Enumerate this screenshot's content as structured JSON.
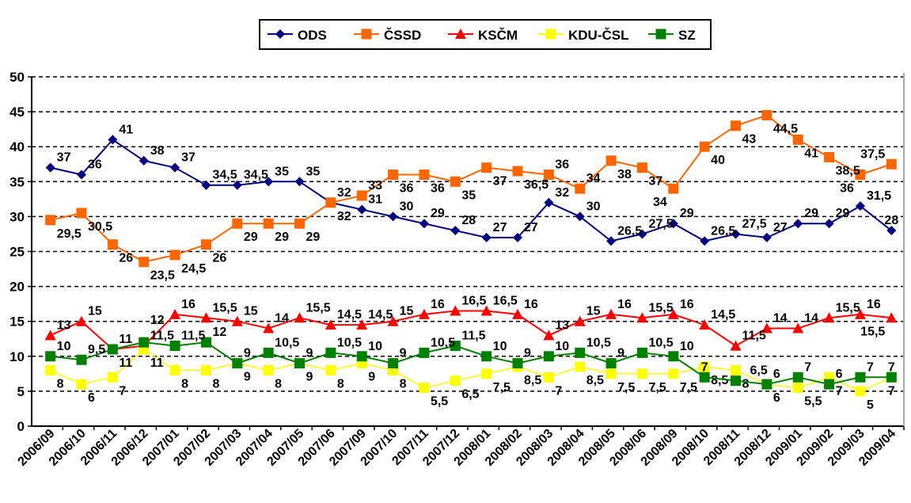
{
  "chart_data": {
    "type": "line",
    "title": "",
    "xlabel": "",
    "ylabel": "",
    "ylim": [
      0,
      50
    ],
    "yticks": [
      0,
      5,
      10,
      15,
      20,
      25,
      30,
      35,
      40,
      45,
      50
    ],
    "grid": true,
    "legend_position": "top",
    "categories": [
      "2006/09",
      "2006/10",
      "2006/11",
      "2006/12",
      "2007/01",
      "2007/02",
      "2007/03",
      "2007/04",
      "2007/05",
      "2007/06",
      "2007/09",
      "2007/10",
      "2007/11",
      "2007/12",
      "2008/01",
      "2008/02",
      "2008/03",
      "2008/04",
      "2008/05",
      "2008/06",
      "2008/09",
      "2008/10",
      "2008/11",
      "2008/12",
      "2009/01",
      "2009/02",
      "2009/03",
      "2009/04"
    ],
    "series": [
      {
        "name": "ODS",
        "color": "#000080",
        "marker": "diamond",
        "values": [
          37,
          36,
          41,
          38,
          37,
          34.5,
          34.5,
          35,
          35,
          32,
          31,
          30,
          29,
          28,
          27,
          27,
          32,
          30,
          26.5,
          27.5,
          29,
          26.5,
          27.5,
          27,
          29,
          29,
          31.5,
          28
        ]
      },
      {
        "name": "ČSSD",
        "color": "#FF6600",
        "marker": "square",
        "values": [
          29.5,
          30.5,
          26,
          23.5,
          24.5,
          26,
          29,
          29,
          29,
          32,
          33,
          36,
          36,
          35,
          37,
          36.5,
          36,
          34,
          38,
          37,
          34,
          40,
          43,
          44.5,
          41,
          38.5,
          36,
          37.5
        ]
      },
      {
        "name": "KSČM",
        "color": "#FF0000",
        "marker": "triangle",
        "values": [
          13,
          15,
          11,
          11.5,
          16,
          15.5,
          15,
          14,
          15.5,
          14.5,
          14.5,
          15,
          16,
          16.5,
          16.5,
          16,
          13,
          15,
          16,
          15.5,
          16,
          14.5,
          11.5,
          14,
          14,
          15.5,
          16,
          15.5
        ]
      },
      {
        "name": "KDU-ČSL",
        "color": "#FFFF00",
        "marker": "square",
        "values": [
          8,
          6,
          7,
          11,
          8,
          8,
          9,
          8,
          9,
          8,
          9,
          8,
          5.5,
          6.5,
          7.5,
          8.5,
          7,
          8.5,
          7.5,
          7.5,
          7.5,
          8.5,
          8,
          6,
          5.5,
          7,
          5,
          7
        ]
      },
      {
        "name": "SZ",
        "color": "#008000",
        "marker": "square",
        "values": [
          10,
          9.5,
          11,
          12,
          11.5,
          12,
          9,
          10.5,
          9,
          10.5,
          10,
          9,
          10.5,
          11.5,
          10,
          9,
          10,
          10.5,
          9,
          10.5,
          10,
          7,
          6.5,
          6,
          7,
          6,
          7,
          7
        ]
      }
    ]
  }
}
